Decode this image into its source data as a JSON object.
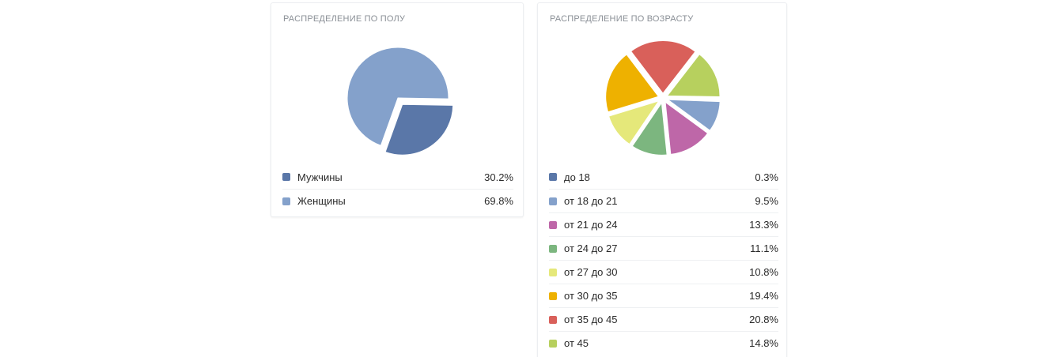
{
  "chart_data": [
    {
      "type": "pie",
      "title": "РАСПРЕДЕЛЕНИЕ ПО ПОЛУ",
      "legend_position": "bottom",
      "series": [
        {
          "label": "Мужчины",
          "value": 30.2,
          "value_text": "30.2%",
          "color": "#5a77a8",
          "exploded": true
        },
        {
          "label": "Женщины",
          "value": 69.8,
          "value_text": "69.8%",
          "color": "#84a1cb",
          "exploded": false
        }
      ]
    },
    {
      "type": "pie",
      "title": "РАСПРЕДЕЛЕНИЕ ПО ВОЗРАСТУ",
      "legend_position": "bottom",
      "series": [
        {
          "label": "до 18",
          "value": 0.3,
          "value_text": "0.3%",
          "color": "#5a77a8"
        },
        {
          "label": "от 18 до 21",
          "value": 9.5,
          "value_text": "9.5%",
          "color": "#84a1cb"
        },
        {
          "label": "от 21 до 24",
          "value": 13.3,
          "value_text": "13.3%",
          "color": "#be67a8"
        },
        {
          "label": "от 24 до 27",
          "value": 11.1,
          "value_text": "11.1%",
          "color": "#7cb67f"
        },
        {
          "label": "от 27 до 30",
          "value": 10.8,
          "value_text": "10.8%",
          "color": "#e5e87a"
        },
        {
          "label": "от 30 до 35",
          "value": 19.4,
          "value_text": "19.4%",
          "color": "#eeb100"
        },
        {
          "label": "от 35 до 45",
          "value": 20.8,
          "value_text": "20.8%",
          "color": "#d9605a"
        },
        {
          "label": "от 45",
          "value": 14.8,
          "value_text": "14.8%",
          "color": "#b7d05e"
        }
      ]
    }
  ]
}
